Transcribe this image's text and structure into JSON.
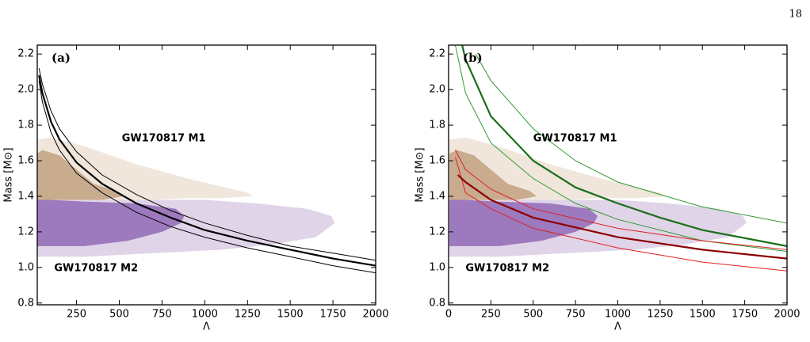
{
  "page_number": "18",
  "chart_data": [
    {
      "type": "line",
      "panel_label": "(a)",
      "x_label": "Λ",
      "y_label": "Mass [M⊙]",
      "xlim": [
        20,
        2000
      ],
      "ylim": [
        0.79,
        2.25
      ],
      "xticks": [
        250,
        500,
        750,
        1000,
        1250,
        1500,
        1750,
        2000
      ],
      "yticks": [
        0.8,
        {
          "value": 1,
          "label": "1.0"
        },
        1.2,
        1.4,
        1.6,
        1.8,
        {
          "value": 2,
          "label": "2.0"
        },
        2.2
      ],
      "regions": [
        {
          "color": "#ede2d6",
          "x": [
            20,
            100,
            300,
            500,
            700,
            900,
            1100,
            1280,
            1250,
            900,
            600,
            300,
            100,
            20
          ],
          "y": [
            1.38,
            1.38,
            1.38,
            1.38,
            1.38,
            1.39,
            1.39,
            1.4,
            1.42,
            1.5,
            1.58,
            1.68,
            1.73,
            1.72
          ]
        },
        {
          "color": "#c2a080",
          "x": [
            20,
            200,
            400,
            520,
            480,
            350,
            250,
            150,
            50,
            20
          ],
          "y": [
            1.38,
            1.38,
            1.38,
            1.4,
            1.43,
            1.47,
            1.55,
            1.63,
            1.66,
            1.64
          ]
        },
        {
          "color": "#dacce4",
          "x": [
            20,
            20,
            300,
            700,
            1100,
            1400,
            1650,
            1760,
            1740,
            1600,
            1300,
            1000,
            700,
            400,
            100
          ],
          "y": [
            1.38,
            1.06,
            1.06,
            1.08,
            1.1,
            1.13,
            1.17,
            1.25,
            1.29,
            1.33,
            1.36,
            1.38,
            1.38,
            1.38,
            1.38
          ]
        },
        {
          "color": "#9169b5",
          "x": [
            20,
            20,
            300,
            550,
            750,
            860,
            880,
            830,
            600,
            300,
            100
          ],
          "y": [
            1.38,
            1.12,
            1.12,
            1.15,
            1.2,
            1.25,
            1.29,
            1.33,
            1.36,
            1.37,
            1.38
          ]
        }
      ],
      "annotations": [
        {
          "text": "GW170817 M1",
          "color": "#a87a4e"
        },
        {
          "text": "GW170817 M2",
          "color": "#5a1a8a"
        }
      ],
      "series": [
        {
          "color": "#000000",
          "width": 1,
          "x": [
            30,
            50,
            100,
            150,
            250,
            400,
            600,
            800,
            1000,
            1250,
            1500,
            1750,
            2000
          ],
          "values": [
            2.12,
            2.03,
            1.88,
            1.78,
            1.65,
            1.52,
            1.41,
            1.32,
            1.25,
            1.18,
            1.12,
            1.08,
            1.04
          ]
        },
        {
          "color": "#000000",
          "width": 1,
          "x": [
            30,
            50,
            100,
            150,
            250,
            400,
            600,
            800,
            1000,
            1250,
            1500,
            1750,
            2000
          ],
          "values": [
            2.05,
            1.93,
            1.76,
            1.66,
            1.53,
            1.42,
            1.31,
            1.23,
            1.17,
            1.11,
            1.06,
            1.01,
            0.97
          ]
        },
        {
          "color": "#000000",
          "width": 2.2,
          "x": [
            30,
            50,
            100,
            150,
            250,
            400,
            600,
            800,
            1000,
            1250,
            1500,
            1750,
            2000
          ],
          "values": [
            2.08,
            1.98,
            1.82,
            1.72,
            1.59,
            1.47,
            1.36,
            1.28,
            1.21,
            1.15,
            1.1,
            1.05,
            1.01
          ]
        }
      ]
    },
    {
      "type": "line",
      "panel_label": "(b)",
      "x_label": "Λ",
      "y_label": "Mass [M⊙]",
      "xlim": [
        0,
        2000
      ],
      "ylim": [
        0.79,
        2.25
      ],
      "xticks": [
        0,
        250,
        500,
        750,
        1000,
        1250,
        1500,
        1750,
        2000
      ],
      "yticks": [
        0.8,
        {
          "value": 1,
          "label": "1.0"
        },
        1.2,
        1.4,
        1.6,
        1.8,
        {
          "value": 2,
          "label": "2.0"
        },
        2.2
      ],
      "regions": [
        {
          "color": "#ede2d6",
          "x": [
            5,
            100,
            300,
            500,
            700,
            900,
            1100,
            1280,
            1250,
            900,
            600,
            300,
            100,
            5
          ],
          "y": [
            1.38,
            1.38,
            1.38,
            1.38,
            1.38,
            1.39,
            1.39,
            1.4,
            1.42,
            1.5,
            1.58,
            1.68,
            1.73,
            1.72
          ]
        },
        {
          "color": "#c2a080",
          "x": [
            5,
            200,
            400,
            520,
            480,
            350,
            250,
            150,
            50,
            5
          ],
          "y": [
            1.38,
            1.38,
            1.38,
            1.4,
            1.43,
            1.47,
            1.55,
            1.63,
            1.66,
            1.64
          ]
        },
        {
          "color": "#dacce4",
          "x": [
            5,
            5,
            300,
            700,
            1100,
            1400,
            1650,
            1760,
            1740,
            1600,
            1300,
            1000,
            700,
            400,
            100
          ],
          "y": [
            1.38,
            1.06,
            1.06,
            1.08,
            1.1,
            1.13,
            1.17,
            1.25,
            1.29,
            1.33,
            1.36,
            1.38,
            1.38,
            1.38,
            1.38
          ]
        },
        {
          "color": "#9169b5",
          "x": [
            5,
            5,
            300,
            550,
            750,
            860,
            880,
            830,
            600,
            300,
            100
          ],
          "y": [
            1.38,
            1.12,
            1.12,
            1.15,
            1.2,
            1.25,
            1.29,
            1.33,
            1.36,
            1.37,
            1.38
          ]
        }
      ],
      "annotations": [
        {
          "text": "GW170817 M1",
          "color": "#a87a4e"
        },
        {
          "text": "GW170817 M2",
          "color": "#5a1a8a"
        }
      ],
      "series": [
        {
          "color": "#2e9a2e",
          "width": 1,
          "x": [
            160,
            250,
            500,
            750,
            1000,
            1500,
            2000
          ],
          "values": [
            2.2,
            2.05,
            1.78,
            1.6,
            1.48,
            1.34,
            1.25
          ]
        },
        {
          "color": "#2e9a2e",
          "width": 1,
          "x": [
            40,
            100,
            250,
            500,
            750,
            1000,
            1500,
            2000
          ],
          "values": [
            2.25,
            1.98,
            1.7,
            1.5,
            1.36,
            1.27,
            1.15,
            1.09
          ]
        },
        {
          "color": "#1a6e1a",
          "width": 2.2,
          "x": [
            80,
            100,
            250,
            500,
            750,
            1000,
            1250,
            1500,
            2000
          ],
          "values": [
            2.25,
            2.17,
            1.85,
            1.6,
            1.45,
            1.36,
            1.28,
            1.21,
            1.12
          ]
        },
        {
          "color": "#e02020",
          "width": 1,
          "x": [
            40,
            100,
            250,
            500,
            1000,
            1500,
            2000
          ],
          "values": [
            1.66,
            1.55,
            1.44,
            1.33,
            1.22,
            1.15,
            1.1
          ]
        },
        {
          "color": "#e02020",
          "width": 1,
          "x": [
            40,
            100,
            250,
            500,
            1000,
            1500,
            2000
          ],
          "values": [
            1.62,
            1.42,
            1.33,
            1.22,
            1.11,
            1.03,
            0.98
          ]
        },
        {
          "color": "#8b0000",
          "width": 2.2,
          "x": [
            55,
            100,
            250,
            500,
            1000,
            1500,
            2000
          ],
          "values": [
            1.52,
            1.48,
            1.38,
            1.28,
            1.17,
            1.1,
            1.05
          ]
        }
      ]
    }
  ]
}
